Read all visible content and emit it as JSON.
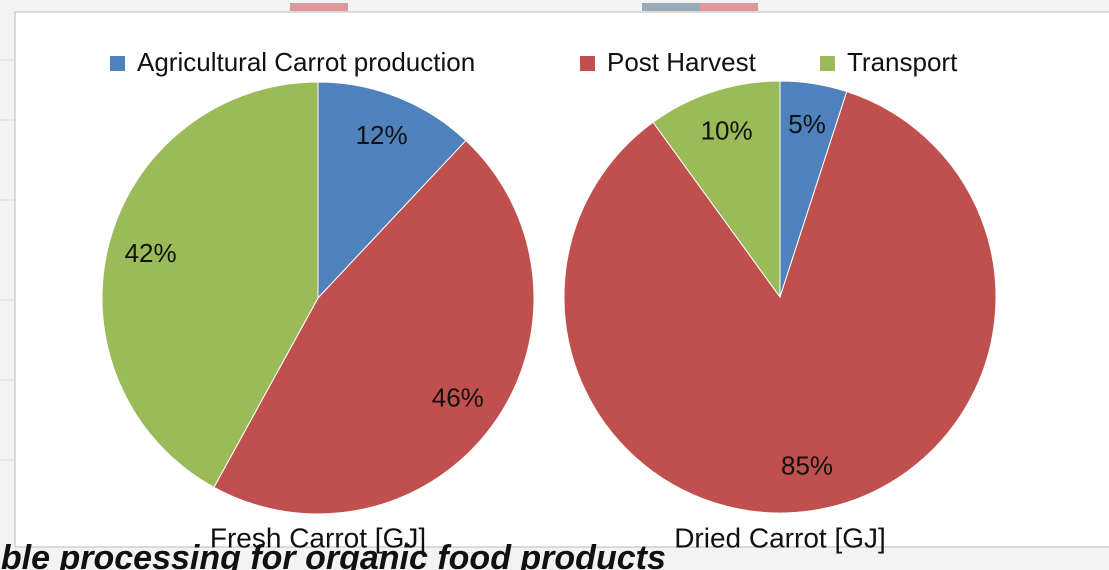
{
  "chart_data": {
    "type": "pie",
    "categories": [
      "Agricultural Carrot production",
      "Post Harvest",
      "Transport"
    ],
    "colors": [
      "#4f81bd",
      "#c0504d",
      "#9bbb59"
    ],
    "series": [
      {
        "name": "Fresh Carrot [GJ]",
        "values": [
          12,
          46,
          42
        ],
        "value_labels": [
          "12%",
          "46%",
          "42%"
        ]
      },
      {
        "name": "Dried Carrot [GJ]",
        "values": [
          5,
          85,
          10
        ],
        "value_labels": [
          "5%",
          "85%",
          "10%"
        ]
      }
    ]
  },
  "background_text": "able processing for organic food products"
}
